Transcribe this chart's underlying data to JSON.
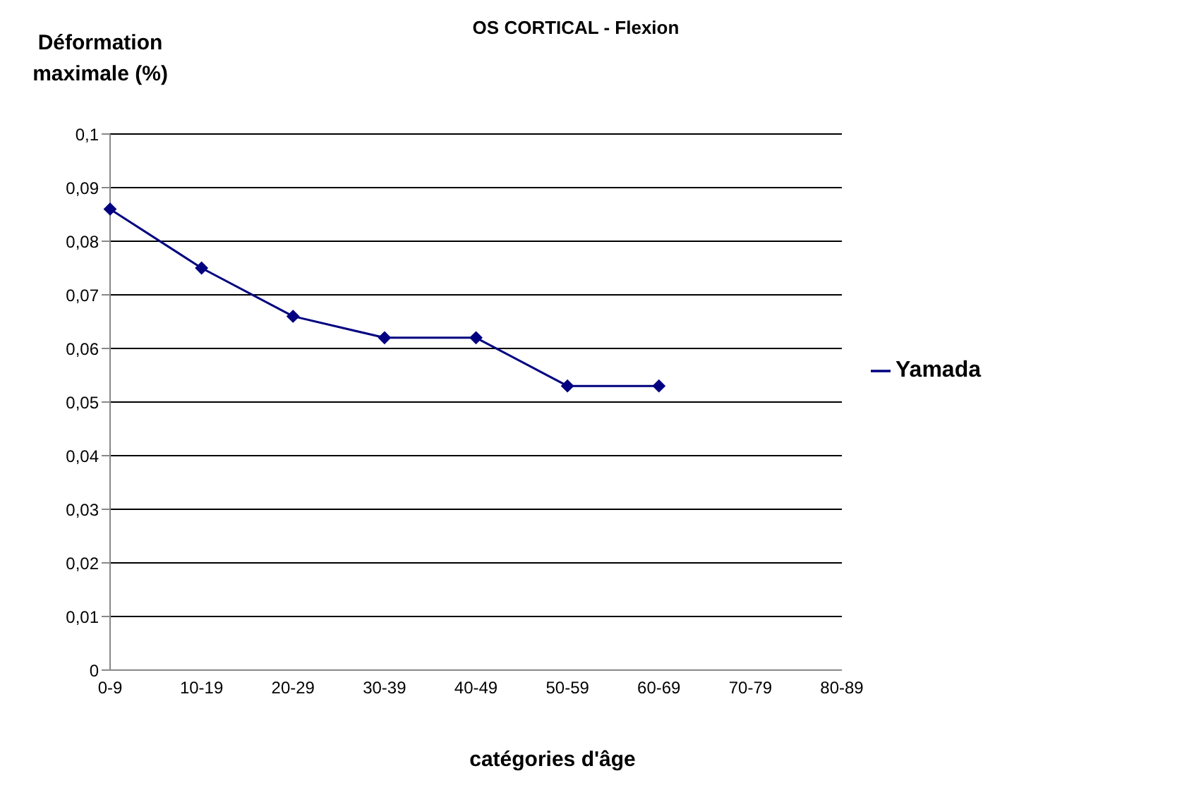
{
  "chart_data": {
    "type": "line",
    "title": "OS CORTICAL - Flexion",
    "xlabel": "catégories d'âge",
    "ylabel": "Déformation maximale (%)",
    "categories": [
      "0-9",
      "10-19",
      "20-29",
      "30-39",
      "40-49",
      "50-59",
      "60-69",
      "70-79",
      "80-89"
    ],
    "series": [
      {
        "name": "Yamada",
        "color": "#000080",
        "values": [
          0.086,
          0.075,
          0.066,
          0.062,
          0.062,
          0.053,
          0.053,
          null,
          null
        ]
      }
    ],
    "ylim": [
      0,
      0.1
    ],
    "yticks": [
      {
        "value": 0,
        "label": "0"
      },
      {
        "value": 0.01,
        "label": "0,01"
      },
      {
        "value": 0.02,
        "label": "0,02"
      },
      {
        "value": 0.03,
        "label": "0,03"
      },
      {
        "value": 0.04,
        "label": "0,04"
      },
      {
        "value": 0.05,
        "label": "0,05"
      },
      {
        "value": 0.06,
        "label": "0,06"
      },
      {
        "value": 0.07,
        "label": "0,07"
      },
      {
        "value": 0.08,
        "label": "0,08"
      },
      {
        "value": 0.09,
        "label": "0,09"
      },
      {
        "value": 0.1,
        "label": "0,1"
      }
    ],
    "grid": "y",
    "legend": "right",
    "marker": "diamond",
    "line_style": "solid"
  }
}
